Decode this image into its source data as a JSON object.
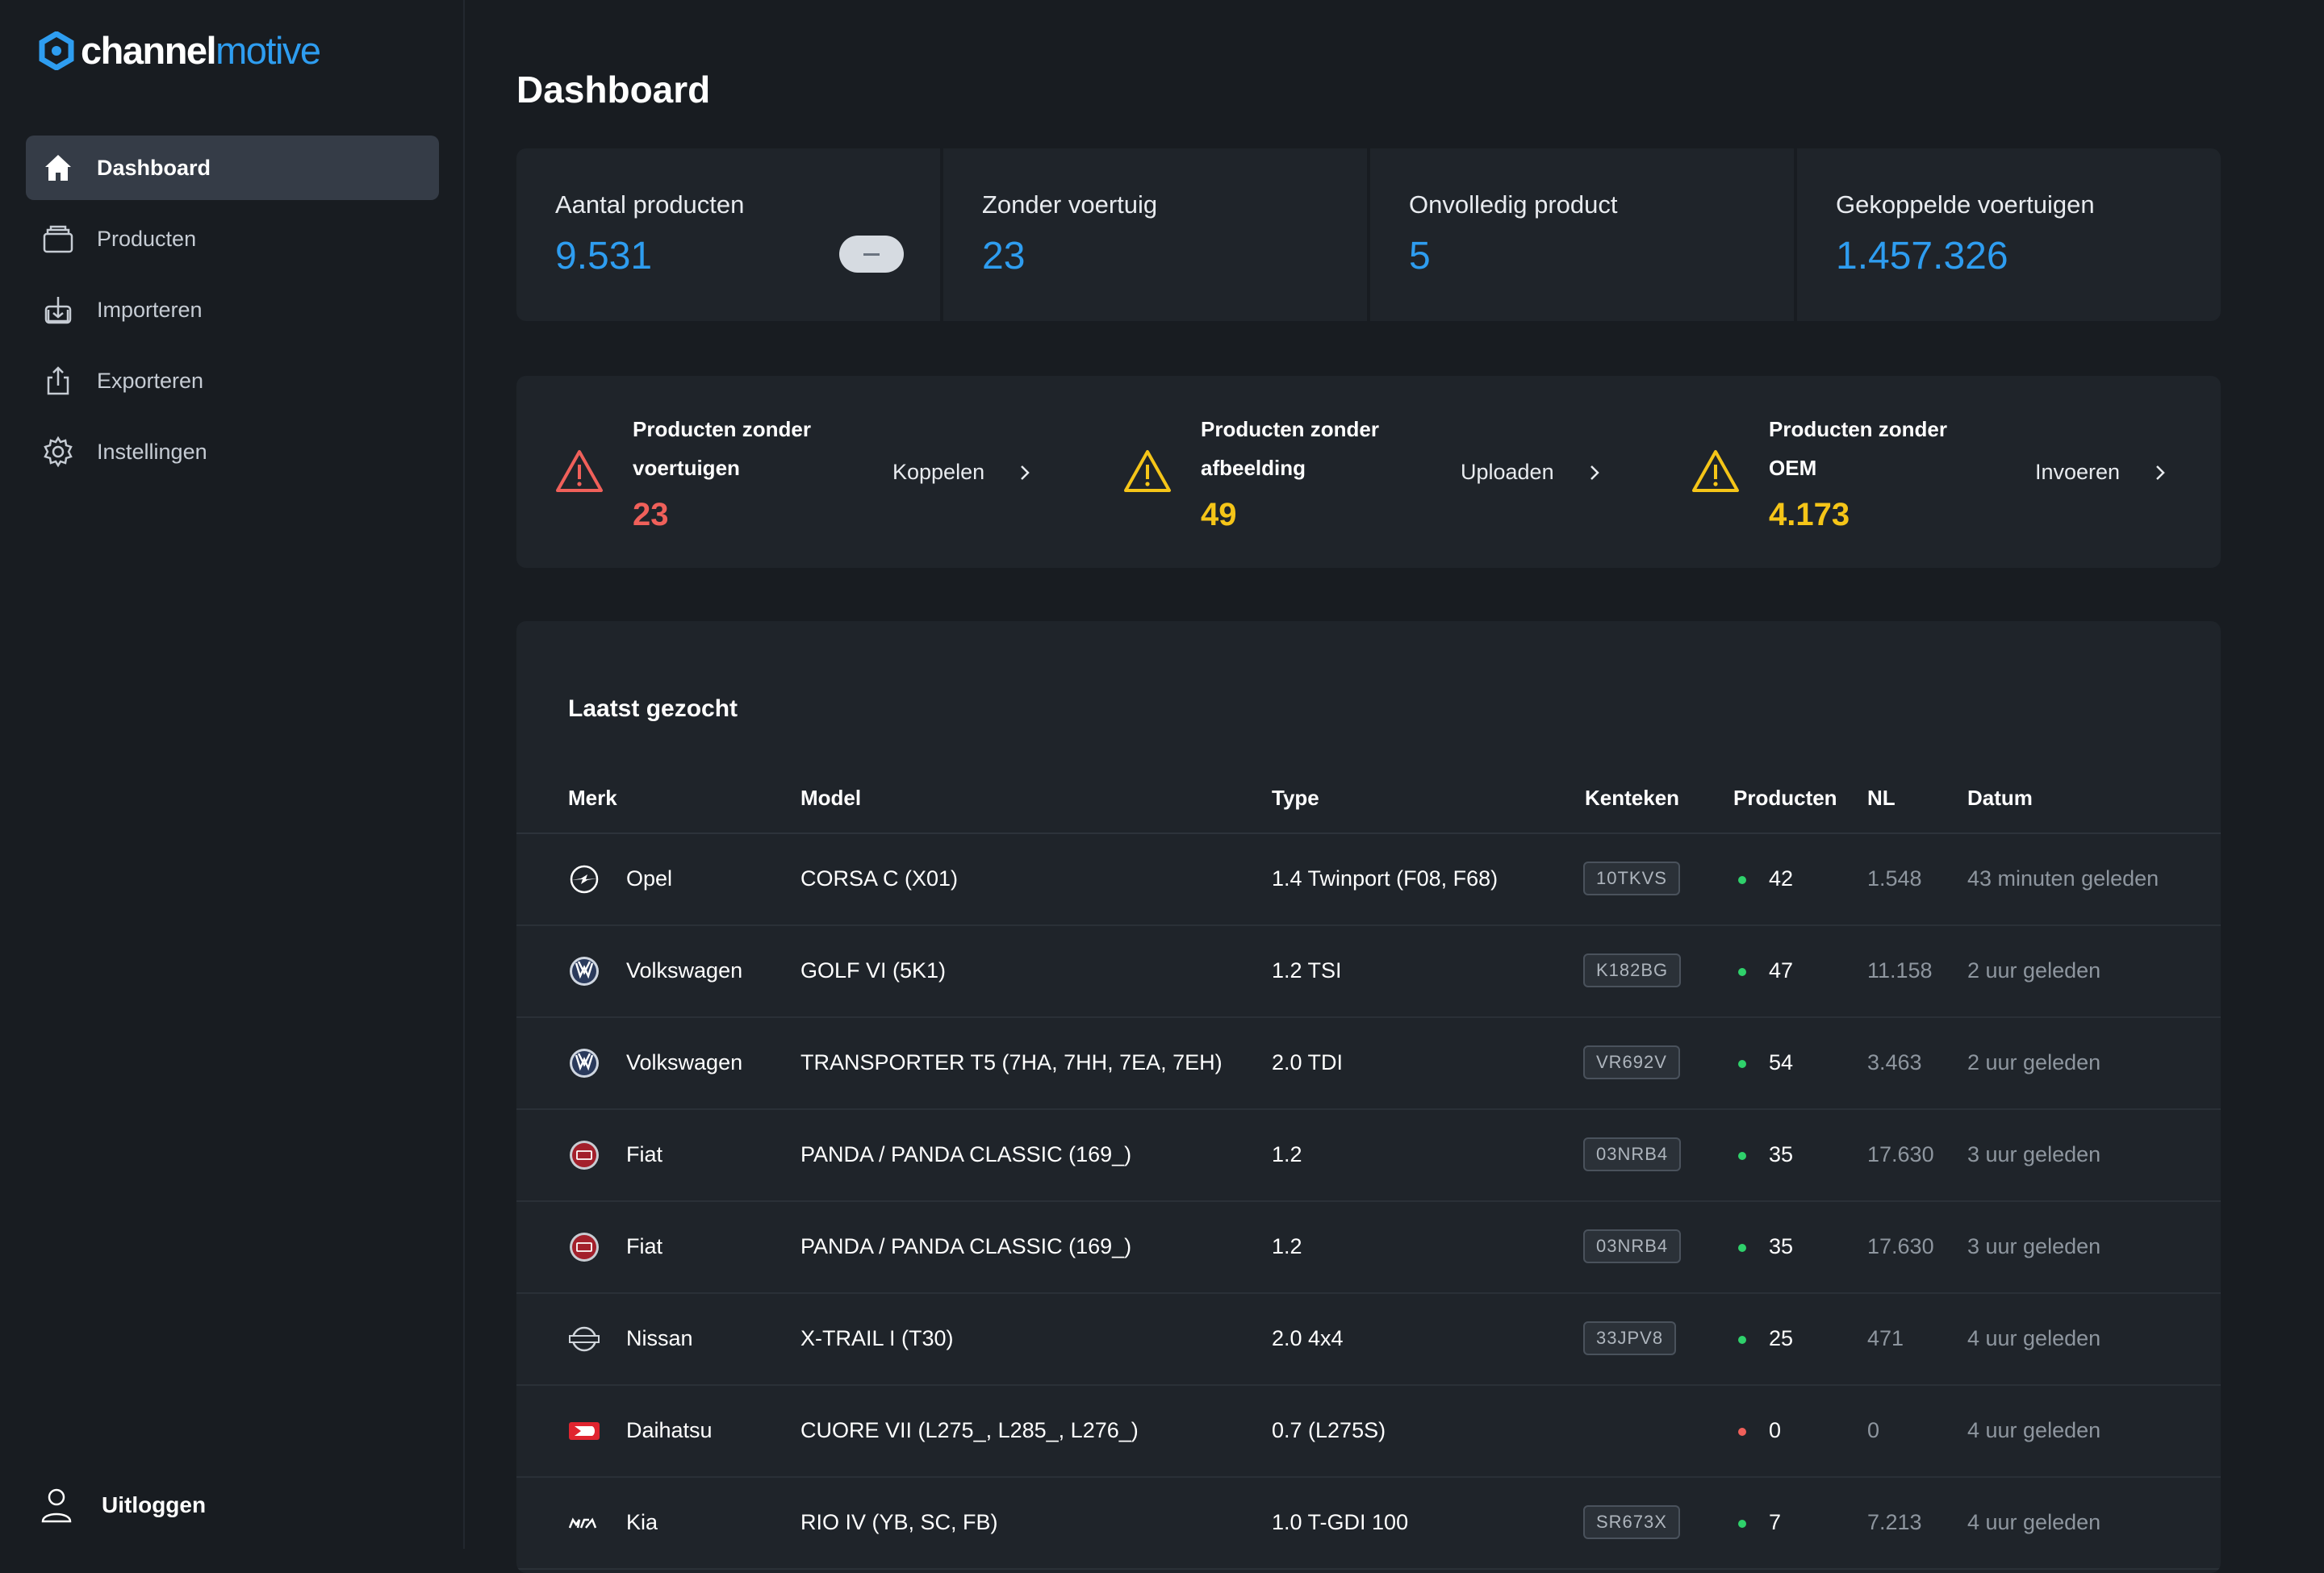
{
  "logo": {
    "part1": "channel",
    "part2": "motive"
  },
  "sidebar": {
    "items": [
      {
        "label": "Dashboard",
        "icon": "home-icon",
        "active": true
      },
      {
        "label": "Producten",
        "icon": "box-icon"
      },
      {
        "label": "Importeren",
        "icon": "import-icon"
      },
      {
        "label": "Exporteren",
        "icon": "export-icon"
      },
      {
        "label": "Instellingen",
        "icon": "gear-icon"
      }
    ],
    "logout": "Uitloggen"
  },
  "page": {
    "title": "Dashboard"
  },
  "stats": [
    {
      "label": "Aantal producten",
      "value": "9.531"
    },
    {
      "label": "Zonder voertuig",
      "value": "23"
    },
    {
      "label": "Onvolledig product",
      "value": "5"
    },
    {
      "label": "Gekoppelde voertuigen",
      "value": "1.457.326"
    }
  ],
  "alerts": [
    {
      "title": "Producten zonder voertuigen",
      "value": "23",
      "action": "Koppelen",
      "color": "#f0605a"
    },
    {
      "title": "Producten zonder afbeelding",
      "value": "49",
      "action": "Uploaden",
      "color": "#f5c518"
    },
    {
      "title": "Producten zonder OEM",
      "value": "4.173",
      "action": "Invoeren",
      "color": "#f5c518"
    }
  ],
  "table": {
    "title": "Laatst gezocht",
    "headers": {
      "merk": "Merk",
      "model": "Model",
      "type": "Type",
      "kenteken": "Kenteken",
      "producten": "Producten",
      "nl": "NL",
      "datum": "Datum"
    },
    "rows": [
      {
        "merk": "Opel",
        "logo": "opel-logo",
        "model": "CORSA C (X01)",
        "type": "1.4 Twinport (F08, F68)",
        "kenteken": "10TKVS",
        "producten": "42",
        "status": "green",
        "nl": "1.548",
        "datum": "43 minuten geleden"
      },
      {
        "merk": "Volkswagen",
        "logo": "volkswagen-logo",
        "model": "GOLF VI (5K1)",
        "type": "1.2 TSI",
        "kenteken": "K182BG",
        "producten": "47",
        "status": "green",
        "nl": "11.158",
        "datum": "2 uur geleden"
      },
      {
        "merk": "Volkswagen",
        "logo": "volkswagen-logo",
        "model": "TRANSPORTER T5 (7HA, 7HH, 7EA, 7EH)",
        "type": "2.0 TDI",
        "kenteken": "VR692V",
        "producten": "54",
        "status": "green",
        "nl": "3.463",
        "datum": "2 uur geleden"
      },
      {
        "merk": "Fiat",
        "logo": "fiat-logo",
        "model": "PANDA / PANDA CLASSIC (169_)",
        "type": "1.2",
        "kenteken": "03NRB4",
        "producten": "35",
        "status": "green",
        "nl": "17.630",
        "datum": "3 uur geleden"
      },
      {
        "merk": "Fiat",
        "logo": "fiat-logo",
        "model": "PANDA / PANDA CLASSIC (169_)",
        "type": "1.2",
        "kenteken": "03NRB4",
        "producten": "35",
        "status": "green",
        "nl": "17.630",
        "datum": "3 uur geleden"
      },
      {
        "merk": "Nissan",
        "logo": "nissan-logo",
        "model": "X-TRAIL I (T30)",
        "type": "2.0 4x4",
        "kenteken": "33JPV8",
        "producten": "25",
        "status": "green",
        "nl": "471",
        "datum": "4 uur geleden"
      },
      {
        "merk": "Daihatsu",
        "logo": "daihatsu-logo",
        "model": "CUORE VII (L275_, L285_, L276_)",
        "type": "0.7 (L275S)",
        "kenteken": "",
        "producten": "0",
        "status": "red",
        "nl": "0",
        "datum": "4 uur geleden"
      },
      {
        "merk": "Kia",
        "logo": "kia-logo",
        "model": "RIO IV (YB, SC, FB)",
        "type": "1.0 T-GDI 100",
        "kenteken": "SR673X",
        "producten": "7",
        "status": "green",
        "nl": "7.213",
        "datum": "4 uur geleden"
      }
    ]
  },
  "colors": {
    "accent": "#2e9df0",
    "green": "#2fd16b",
    "red": "#f0605a",
    "warning": "#f5c518"
  }
}
